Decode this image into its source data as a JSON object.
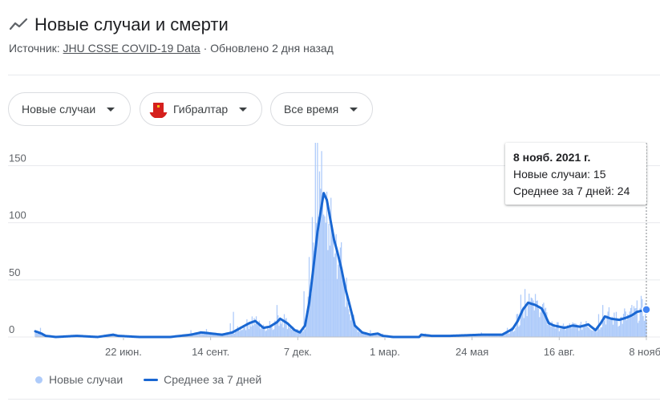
{
  "header": {
    "title": "Новые случаи и смерти",
    "source_prefix": "Источник:",
    "source_link": "JHU CSSE COVID-19 Data",
    "updated": "· Обновлено 2 дня назад"
  },
  "filters": {
    "metric": "Новые случаи",
    "location": "Гибралтар",
    "period": "Все время"
  },
  "tooltip": {
    "date": "8 нояб. 2021 г.",
    "cases": "Новые случаи: 15",
    "avg": "Среднее за 7 дней: 24"
  },
  "legend": {
    "cases": "Новые случаи",
    "avg": "Среднее за 7 дней"
  },
  "colors": {
    "bars": "#aecbfa",
    "line": "#1967d2",
    "grid": "#e8eaed",
    "axis": "#5f6368"
  },
  "chart_data": {
    "type": "bar",
    "title": "Новые случаи и смерти",
    "ylim": [
      0,
      170
    ],
    "y_ticks": [
      0,
      50,
      100,
      150
    ],
    "x_ticks": [
      "22 июн.",
      "14 сент.",
      "7 дек.",
      "1 мар.",
      "24 мая",
      "16 авг.",
      "8 нояб."
    ],
    "x_tick_days": [
      85,
      169,
      253,
      337,
      421,
      505,
      589
    ],
    "x_range_days": [
      0,
      589
    ],
    "series": [
      {
        "name": "Среднее за 7 дней",
        "kind": "line",
        "points": [
          [
            0,
            5
          ],
          [
            6,
            3
          ],
          [
            10,
            1
          ],
          [
            20,
            0
          ],
          [
            40,
            1
          ],
          [
            60,
            0
          ],
          [
            75,
            2
          ],
          [
            80,
            1
          ],
          [
            100,
            0
          ],
          [
            130,
            0
          ],
          [
            150,
            2
          ],
          [
            160,
            4
          ],
          [
            170,
            3
          ],
          [
            180,
            2
          ],
          [
            190,
            4
          ],
          [
            200,
            9
          ],
          [
            206,
            12
          ],
          [
            212,
            14
          ],
          [
            220,
            8
          ],
          [
            226,
            9
          ],
          [
            233,
            13
          ],
          [
            236,
            16
          ],
          [
            243,
            12
          ],
          [
            250,
            6
          ],
          [
            255,
            4
          ],
          [
            260,
            10
          ],
          [
            264,
            30
          ],
          [
            268,
            60
          ],
          [
            272,
            92
          ],
          [
            276,
            115
          ],
          [
            278,
            126
          ],
          [
            281,
            120
          ],
          [
            284,
            105
          ],
          [
            288,
            85
          ],
          [
            291,
            75
          ],
          [
            295,
            60
          ],
          [
            299,
            42
          ],
          [
            303,
            28
          ],
          [
            308,
            10
          ],
          [
            315,
            4
          ],
          [
            323,
            2
          ],
          [
            330,
            3
          ],
          [
            335,
            1
          ],
          [
            345,
            0
          ],
          [
            370,
            0
          ],
          [
            372,
            2
          ],
          [
            382,
            1
          ],
          [
            400,
            1
          ],
          [
            430,
            2
          ],
          [
            450,
            2
          ],
          [
            460,
            7
          ],
          [
            465,
            14
          ],
          [
            470,
            24
          ],
          [
            475,
            30
          ],
          [
            482,
            28
          ],
          [
            488,
            25
          ],
          [
            491,
            20
          ],
          [
            495,
            12
          ],
          [
            500,
            10
          ],
          [
            510,
            8
          ],
          [
            518,
            10
          ],
          [
            525,
            9
          ],
          [
            533,
            11
          ],
          [
            540,
            6
          ],
          [
            545,
            12
          ],
          [
            549,
            18
          ],
          [
            555,
            16
          ],
          [
            563,
            15
          ],
          [
            570,
            17
          ],
          [
            575,
            19
          ],
          [
            580,
            22
          ],
          [
            589,
            24
          ]
        ]
      },
      {
        "name": "Новые случаи",
        "kind": "bar",
        "peaks": [
          [
            5,
            8
          ],
          [
            150,
            6
          ],
          [
            165,
            7
          ],
          [
            188,
            12
          ],
          [
            191,
            22
          ],
          [
            209,
            18
          ],
          [
            218,
            10
          ],
          [
            226,
            14
          ],
          [
            233,
            28
          ],
          [
            240,
            20
          ],
          [
            259,
            40
          ],
          [
            264,
            70
          ],
          [
            267,
            105
          ],
          [
            270,
            170
          ],
          [
            272,
            170
          ],
          [
            274,
            145
          ],
          [
            277,
            120
          ],
          [
            280,
            100
          ],
          [
            284,
            80
          ],
          [
            288,
            70
          ],
          [
            290,
            90
          ],
          [
            293,
            70
          ],
          [
            297,
            50
          ],
          [
            303,
            20
          ],
          [
            323,
            6
          ],
          [
            335,
            3
          ],
          [
            376,
            3
          ],
          [
            430,
            4
          ],
          [
            455,
            8
          ],
          [
            464,
            20
          ],
          [
            468,
            37
          ],
          [
            472,
            42
          ],
          [
            476,
            38
          ],
          [
            480,
            32
          ],
          [
            485,
            25
          ],
          [
            490,
            30
          ],
          [
            495,
            12
          ],
          [
            508,
            10
          ],
          [
            520,
            12
          ],
          [
            531,
            14
          ],
          [
            543,
            20
          ],
          [
            547,
            28
          ],
          [
            553,
            26
          ],
          [
            560,
            22
          ],
          [
            568,
            25
          ],
          [
            575,
            28
          ],
          [
            580,
            32
          ],
          [
            584,
            36
          ],
          [
            589,
            15
          ]
        ]
      }
    ]
  }
}
